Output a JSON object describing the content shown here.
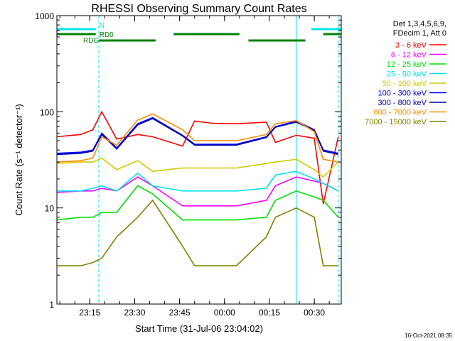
{
  "chart_data": {
    "type": "line",
    "title": "RHESSI Observing Summary Count Rates",
    "xlabel": "Start Time (31-Jul-06 23:04:02)",
    "ylabel": "Count Rate (s⁻¹ detector⁻¹)",
    "y_scale": "log",
    "ylim": [
      1,
      1000
    ],
    "xlim": [
      "23:04",
      "00:39"
    ],
    "x_ticks": [
      "23:15",
      "23:30",
      "23:45",
      "00:00",
      "00:15",
      "00:30"
    ],
    "y_ticks": [
      "1",
      "10",
      "100",
      "1000"
    ],
    "legend_header": [
      "Det 1,3,4,5,6,9,",
      "FDecim 1, Att 0"
    ],
    "legend_position": "right",
    "timestamp": "16-Oct-2021 08:35",
    "flags": [
      {
        "label": "N",
        "color": "#00e5ee",
        "segments": [
          [
            "23:04",
            "23:17"
          ],
          [
            "00:29",
            "00:39"
          ]
        ]
      },
      {
        "label": "RD0",
        "color": "#008000",
        "segments": [
          [
            "23:04",
            "23:17"
          ],
          [
            "23:43",
            "00:05"
          ],
          [
            "00:33",
            "00:39"
          ]
        ]
      },
      {
        "label": "RDG",
        "color": "#008000",
        "segments": [
          [
            "23:18",
            "23:37"
          ],
          [
            "00:08",
            "00:27"
          ]
        ]
      }
    ],
    "vertical_markers": [
      {
        "time": "23:04",
        "style": "solid",
        "color": "#00e5ee"
      },
      {
        "time": "23:18",
        "style": "dashed",
        "color": "#00e5ee"
      },
      {
        "time": "00:24",
        "style": "solid",
        "color": "#00e5ee"
      },
      {
        "time": "00:38",
        "style": "dashed",
        "color": "#00e5ee"
      }
    ],
    "x_minutes": [
      0,
      8,
      12,
      15,
      20,
      27,
      32,
      42,
      46,
      52,
      60,
      70,
      73,
      80,
      86,
      89,
      94
    ],
    "series": [
      {
        "name": "3 - 6 keV",
        "color": "#ff0000",
        "values": [
          55,
          58,
          65,
          100,
          52,
          58,
          55,
          44,
          80,
          76,
          75,
          78,
          48,
          57,
          53,
          11,
          55
        ]
      },
      {
        "name": "6 - 12 keV",
        "color": "#ff00ff",
        "values": [
          14.5,
          15,
          15,
          16,
          15,
          21,
          17,
          10.5,
          10.5,
          10.5,
          10.5,
          12,
          17,
          21,
          19,
          18,
          15
        ]
      },
      {
        "name": "12 - 25 keV",
        "color": "#00e000",
        "values": [
          7.5,
          8,
          8,
          9,
          9,
          17,
          14,
          7.5,
          7.5,
          7.5,
          7.5,
          8,
          12,
          15,
          13,
          12,
          8
        ]
      },
      {
        "name": "25 - 50 keV",
        "color": "#00e5ee",
        "values": [
          15,
          15,
          16,
          17,
          15,
          23,
          17,
          15,
          15,
          15,
          15,
          16,
          22,
          24,
          20,
          18,
          15
        ]
      },
      {
        "name": "50 - 100 keV",
        "color": "#d4c800",
        "values": [
          29,
          30,
          30,
          33,
          25,
          31,
          24,
          26,
          26,
          26,
          26,
          29,
          30,
          32,
          25,
          21,
          30
        ]
      },
      {
        "name": "100 - 300 keV",
        "color": "#0000ff",
        "values": [
          37,
          38,
          40,
          60,
          42,
          75,
          87,
          57,
          46,
          46,
          46,
          55,
          70,
          80,
          65,
          40,
          37
        ]
      },
      {
        "name": "300 - 800 keV",
        "color": "#0000aa",
        "values": [
          36,
          37,
          39,
          58,
          41,
          73,
          85,
          56,
          45,
          45,
          45,
          54,
          69,
          78,
          64,
          39,
          36
        ]
      },
      {
        "name": "800 - 7000 keV",
        "color": "#ff8c00",
        "values": [
          30,
          31,
          33,
          55,
          45,
          82,
          95,
          65,
          50,
          50,
          50,
          58,
          75,
          81,
          62,
          32,
          30
        ]
      },
      {
        "name": "7000 - 15000 keV",
        "color": "#808000",
        "values": [
          2.5,
          2.5,
          2.7,
          3,
          5,
          8,
          12,
          4,
          2.5,
          2.5,
          2.5,
          5,
          8,
          10,
          8,
          2.5,
          2.5
        ]
      }
    ]
  }
}
